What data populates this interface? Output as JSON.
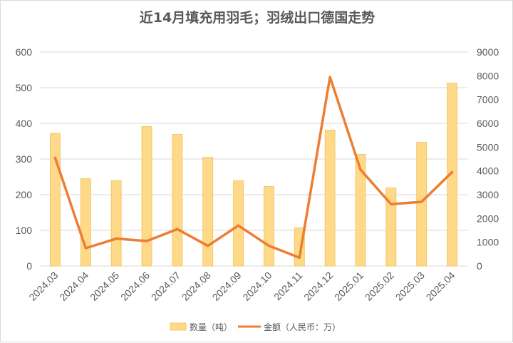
{
  "chart_data": {
    "type": "bar",
    "title": "近14月填充用羽毛；羽绒出口德国走势",
    "categories": [
      "2024.03",
      "2024.04",
      "2024.05",
      "2024.06",
      "2024.07",
      "2024.08",
      "2024.09",
      "2024.10",
      "2024.11",
      "2024.12",
      "2025.01",
      "2025.02",
      "2025.03",
      "2025.04"
    ],
    "series": [
      {
        "name": "数量（吨）",
        "type": "bar",
        "axis": "left",
        "color": "#FFD98A",
        "stroke": "#F2C14E",
        "values": [
          372,
          245,
          239,
          391,
          369,
          305,
          239,
          223,
          107,
          381,
          313,
          219,
          347,
          513
        ]
      },
      {
        "name": "金额（人民币：万）",
        "type": "line",
        "axis": "right",
        "color": "#ED7D31",
        "values": [
          4550,
          750,
          1150,
          1050,
          1550,
          850,
          1700,
          850,
          350,
          7950,
          4050,
          2600,
          2700,
          3950
        ]
      }
    ],
    "ylim_left": [
      0,
      600
    ],
    "yticks_left": [
      0,
      100,
      200,
      300,
      400,
      500,
      600
    ],
    "ylim_right": [
      0,
      9000
    ],
    "yticks_right": [
      0,
      1000,
      2000,
      3000,
      4000,
      5000,
      6000,
      7000,
      8000,
      9000
    ],
    "grid": true,
    "legend_position": "bottom"
  }
}
